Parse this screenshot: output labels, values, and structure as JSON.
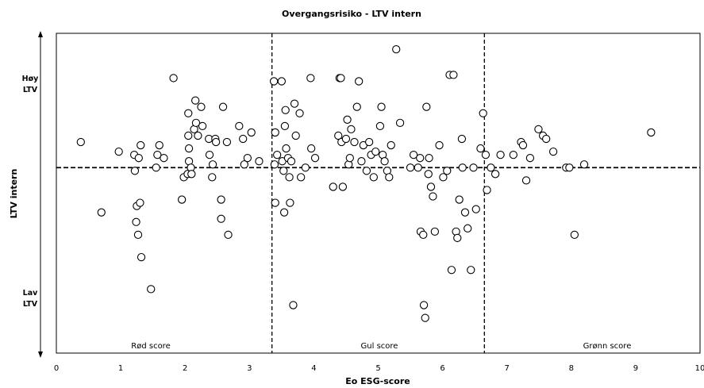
{
  "chart_data": {
    "type": "scatter",
    "title": "Overgangsrisiko - LTV intern",
    "xlabel": "Eo ESG-score",
    "ylabel": "LTV intern",
    "xlim": [
      0,
      10
    ],
    "xticks": [
      "0",
      "1",
      "2",
      "3",
      "4",
      "5",
      "6",
      "7",
      "8",
      "9",
      "10"
    ],
    "ylim": [
      0,
      100
    ],
    "y_axis_labels": {
      "high_line1": "Høy",
      "high_line2": "LTV",
      "low_line1": "Lav",
      "low_line2": "LTV"
    },
    "reference_lines": {
      "x": [
        3.35,
        6.65
      ],
      "y": 58
    },
    "zones": [
      "Rød score",
      "Gul score",
      "Grønn score"
    ],
    "grid": false,
    "legend": "none",
    "points": [
      [
        0.38,
        66
      ],
      [
        0.7,
        44
      ],
      [
        0.97,
        63
      ],
      [
        1.21,
        62
      ],
      [
        1.22,
        57
      ],
      [
        1.25,
        46
      ],
      [
        1.24,
        41
      ],
      [
        1.27,
        37
      ],
      [
        1.28,
        61
      ],
      [
        1.3,
        47
      ],
      [
        1.31,
        65
      ],
      [
        1.32,
        30
      ],
      [
        1.47,
        20
      ],
      [
        1.55,
        58
      ],
      [
        1.57,
        62
      ],
      [
        1.6,
        65
      ],
      [
        1.67,
        61
      ],
      [
        1.82,
        86
      ],
      [
        1.95,
        48
      ],
      [
        1.98,
        55
      ],
      [
        2.04,
        56
      ],
      [
        2.05,
        68
      ],
      [
        2.05,
        75
      ],
      [
        2.06,
        64
      ],
      [
        2.06,
        60
      ],
      [
        2.09,
        58
      ],
      [
        2.1,
        56
      ],
      [
        2.14,
        70
      ],
      [
        2.16,
        79
      ],
      [
        2.17,
        72
      ],
      [
        2.2,
        68
      ],
      [
        2.25,
        77
      ],
      [
        2.27,
        71
      ],
      [
        2.37,
        67
      ],
      [
        2.38,
        62
      ],
      [
        2.42,
        55
      ],
      [
        2.43,
        59
      ],
      [
        2.47,
        67
      ],
      [
        2.48,
        66
      ],
      [
        2.56,
        48
      ],
      [
        2.56,
        42
      ],
      [
        2.59,
        77
      ],
      [
        2.65,
        66
      ],
      [
        2.67,
        37
      ],
      [
        2.84,
        71
      ],
      [
        2.9,
        67
      ],
      [
        2.92,
        59
      ],
      [
        2.97,
        61
      ],
      [
        3.03,
        69
      ],
      [
        3.15,
        60
      ],
      [
        3.38,
        85
      ],
      [
        3.39,
        59
      ],
      [
        3.4,
        69
      ],
      [
        3.4,
        47
      ],
      [
        3.43,
        62
      ],
      [
        3.5,
        85
      ],
      [
        3.51,
        60
      ],
      [
        3.53,
        57
      ],
      [
        3.54,
        44
      ],
      [
        3.55,
        71
      ],
      [
        3.56,
        76
      ],
      [
        3.57,
        64
      ],
      [
        3.6,
        61
      ],
      [
        3.62,
        55
      ],
      [
        3.63,
        47
      ],
      [
        3.65,
        60
      ],
      [
        3.68,
        15
      ],
      [
        3.7,
        78
      ],
      [
        3.72,
        68
      ],
      [
        3.78,
        75
      ],
      [
        3.8,
        55
      ],
      [
        3.87,
        58
      ],
      [
        3.95,
        86
      ],
      [
        3.96,
        64
      ],
      [
        4.02,
        61
      ],
      [
        4.3,
        52
      ],
      [
        4.38,
        68
      ],
      [
        4.4,
        86
      ],
      [
        4.42,
        86
      ],
      [
        4.43,
        66
      ],
      [
        4.45,
        52
      ],
      [
        4.5,
        67
      ],
      [
        4.52,
        73
      ],
      [
        4.54,
        59
      ],
      [
        4.56,
        61
      ],
      [
        4.58,
        70
      ],
      [
        4.63,
        66
      ],
      [
        4.67,
        77
      ],
      [
        4.7,
        85
      ],
      [
        4.74,
        60
      ],
      [
        4.77,
        65
      ],
      [
        4.82,
        57
      ],
      [
        4.86,
        66
      ],
      [
        4.89,
        62
      ],
      [
        4.93,
        55
      ],
      [
        4.96,
        63
      ],
      [
        5.03,
        71
      ],
      [
        5.05,
        77
      ],
      [
        5.07,
        62
      ],
      [
        5.1,
        60
      ],
      [
        5.14,
        57
      ],
      [
        5.17,
        55
      ],
      [
        5.2,
        65
      ],
      [
        5.28,
        95
      ],
      [
        5.34,
        72
      ],
      [
        5.5,
        58
      ],
      [
        5.55,
        62
      ],
      [
        5.62,
        58
      ],
      [
        5.65,
        61
      ],
      [
        5.66,
        38
      ],
      [
        5.7,
        37
      ],
      [
        5.71,
        15
      ],
      [
        5.73,
        11
      ],
      [
        5.75,
        77
      ],
      [
        5.78,
        56
      ],
      [
        5.79,
        61
      ],
      [
        5.82,
        52
      ],
      [
        5.85,
        49
      ],
      [
        5.88,
        38
      ],
      [
        5.95,
        65
      ],
      [
        6.01,
        55
      ],
      [
        6.07,
        57
      ],
      [
        6.11,
        87
      ],
      [
        6.14,
        26
      ],
      [
        6.17,
        87
      ],
      [
        6.21,
        38
      ],
      [
        6.23,
        36
      ],
      [
        6.26,
        48
      ],
      [
        6.3,
        67
      ],
      [
        6.31,
        58
      ],
      [
        6.35,
        44
      ],
      [
        6.39,
        39
      ],
      [
        6.44,
        26
      ],
      [
        6.48,
        58
      ],
      [
        6.52,
        45
      ],
      [
        6.59,
        64
      ],
      [
        6.63,
        75
      ]
    ],
    "points_after_line": [
      [
        6.67,
        62
      ],
      [
        6.69,
        51
      ],
      [
        6.75,
        58
      ],
      [
        6.82,
        56
      ],
      [
        6.9,
        62
      ],
      [
        7.1,
        62
      ],
      [
        7.22,
        66
      ],
      [
        7.25,
        65
      ],
      [
        7.3,
        54
      ],
      [
        7.36,
        61
      ],
      [
        7.49,
        70
      ],
      [
        7.56,
        68
      ],
      [
        7.61,
        67
      ],
      [
        7.72,
        63
      ],
      [
        7.92,
        58
      ],
      [
        7.97,
        58
      ],
      [
        8.05,
        37
      ],
      [
        8.2,
        59
      ],
      [
        9.24,
        69
      ]
    ]
  }
}
